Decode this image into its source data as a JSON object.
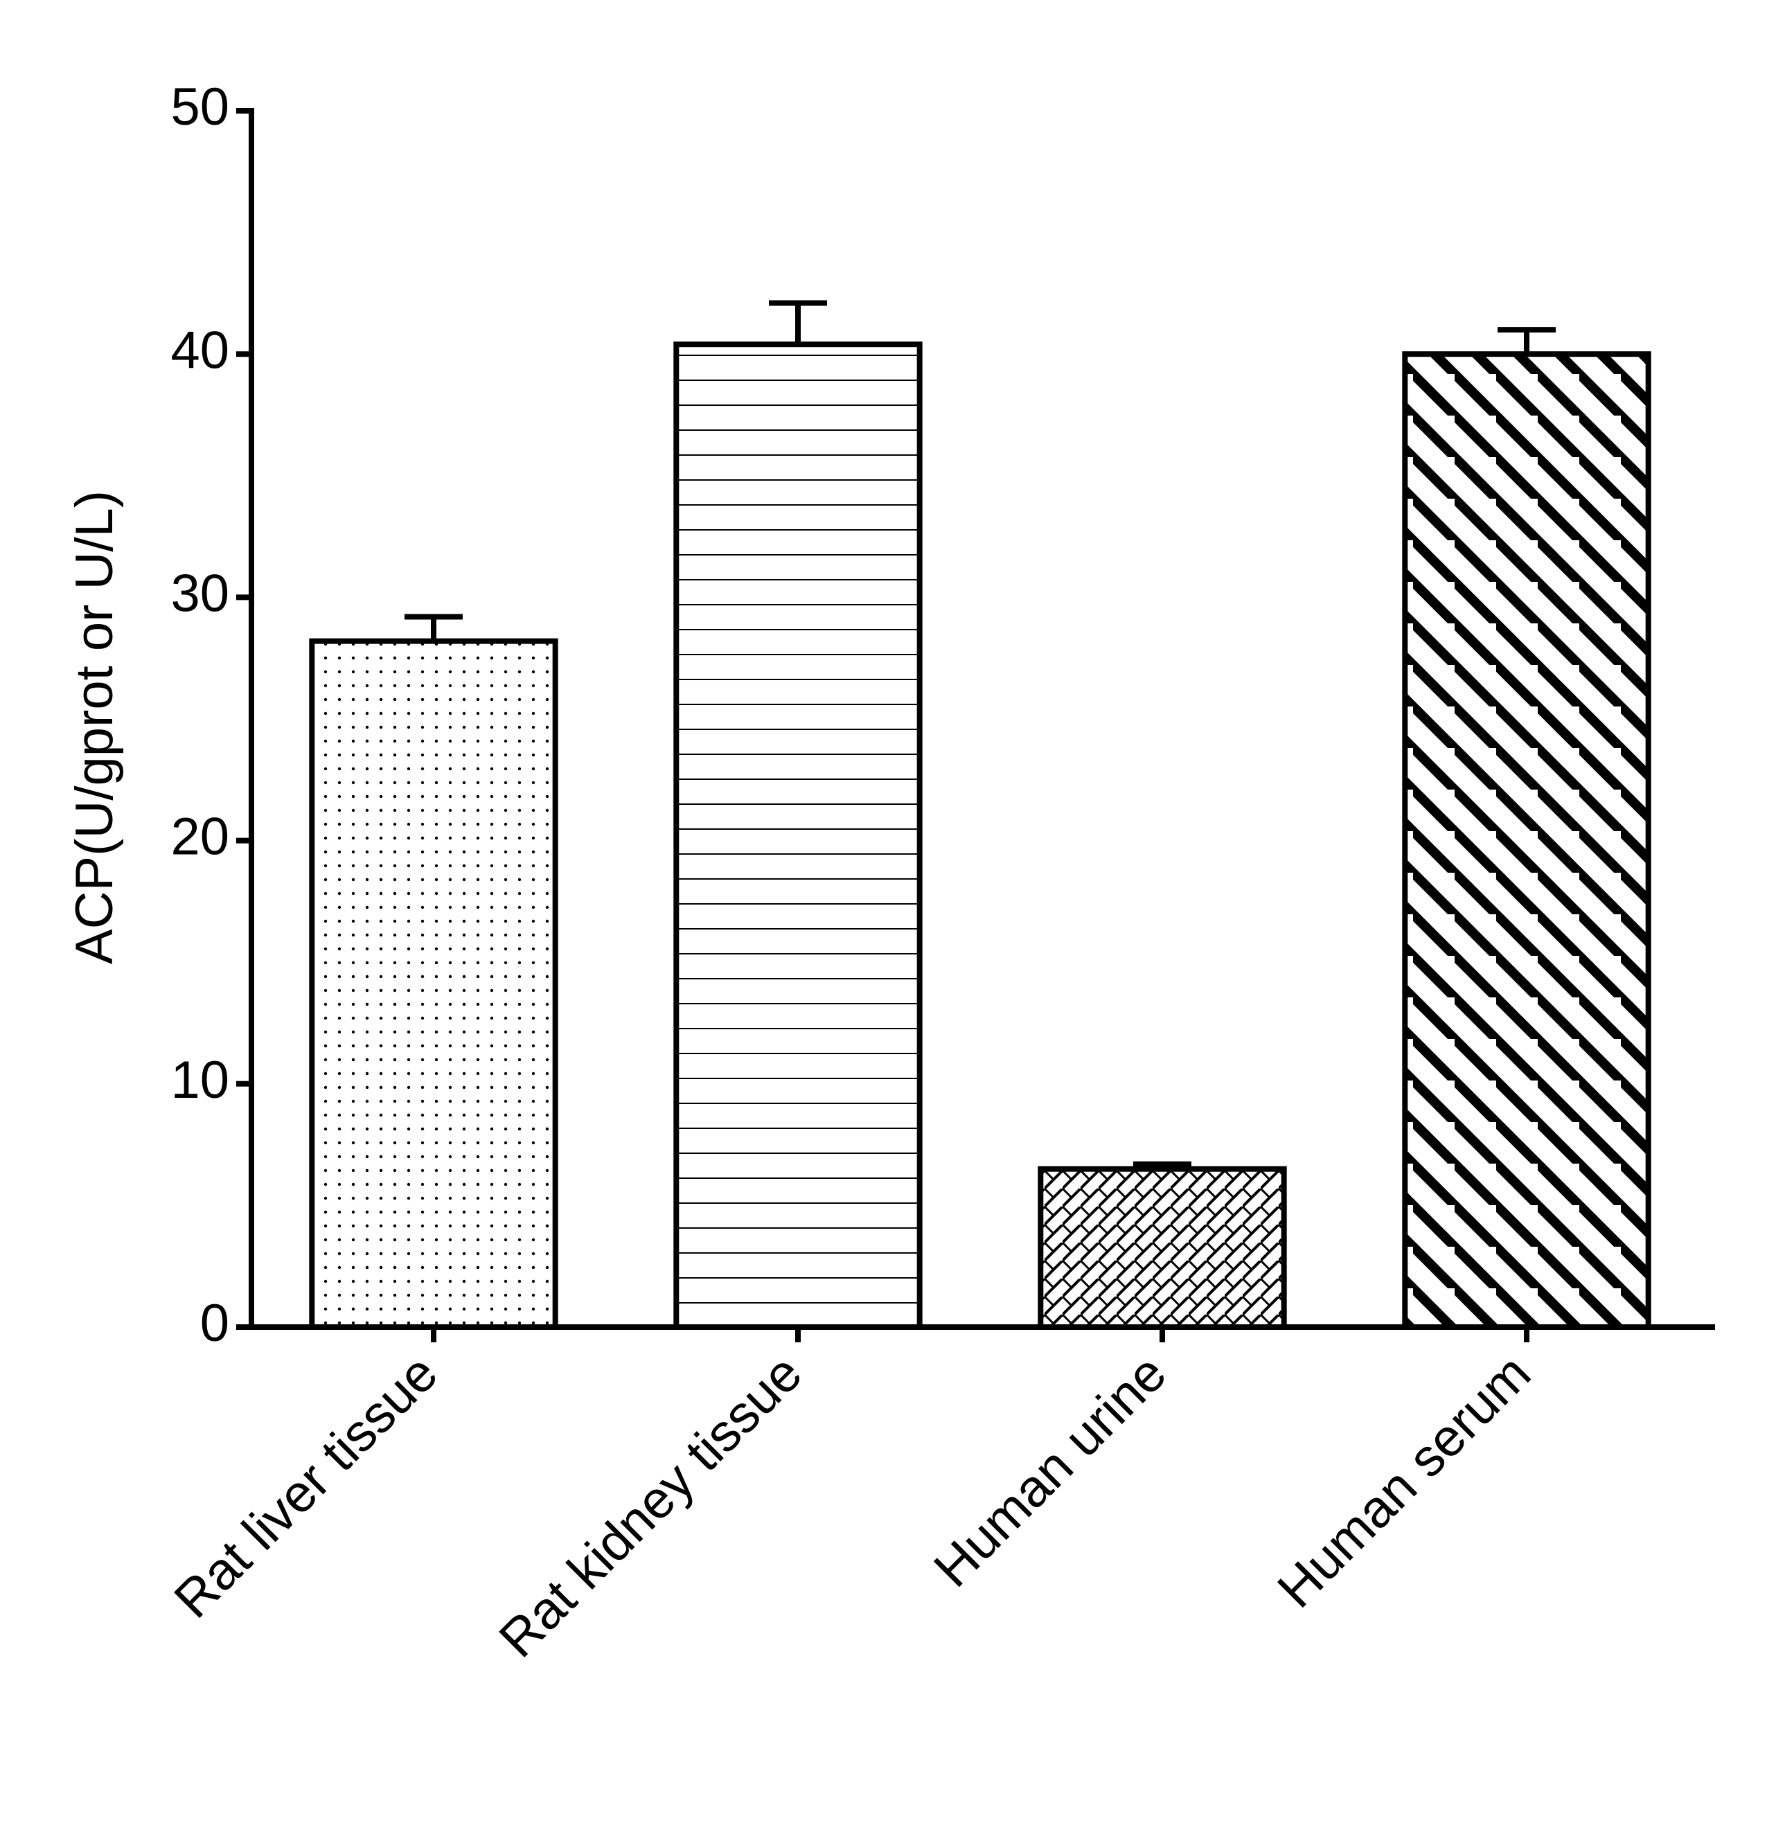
{
  "chart_data": {
    "type": "bar",
    "y_label": "ACP(U/gprot or U/L)",
    "categories": [
      "Rat liver tissue",
      "Rat kidney tissue",
      "Human urine",
      "Human serum"
    ],
    "values": [
      28.2,
      40.4,
      6.5,
      40.0
    ],
    "errors": [
      1.0,
      1.7,
      0.2,
      1.0
    ],
    "patterns": [
      "dots",
      "horizontal",
      "crosshatch",
      "diagonal"
    ],
    "color": "#000000",
    "ylim": [
      0,
      50
    ],
    "yticks": [
      0,
      10,
      20,
      30,
      40,
      50
    ],
    "grid": false
  }
}
